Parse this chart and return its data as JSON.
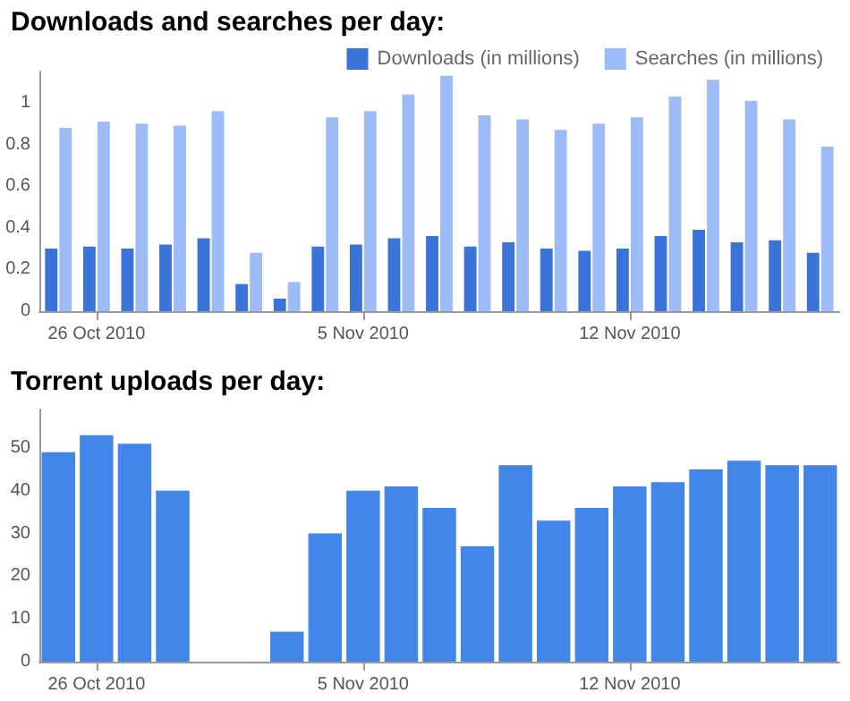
{
  "chart_data": [
    {
      "type": "bar",
      "title": "Downloads and searches per day:",
      "categories": [
        null,
        "26 Oct 2010",
        null,
        null,
        null,
        null,
        null,
        null,
        "5 Nov 2010",
        null,
        null,
        null,
        null,
        null,
        null,
        "12 Nov 2010",
        null,
        null,
        null,
        null,
        null
      ],
      "series": [
        {
          "name": "Downloads (in millions)",
          "color": "#3a74d8",
          "values": [
            0.3,
            0.31,
            0.3,
            0.32,
            0.35,
            0.13,
            0.06,
            0.31,
            0.32,
            0.35,
            0.36,
            0.31,
            0.33,
            0.3,
            0.29,
            0.3,
            0.36,
            0.39,
            0.33,
            0.34,
            0.28
          ]
        },
        {
          "name": "Searches (in millions)",
          "color": "#9dbcf7",
          "values": [
            0.88,
            0.91,
            0.9,
            0.89,
            0.96,
            0.28,
            0.14,
            0.93,
            0.96,
            1.04,
            1.13,
            0.94,
            0.92,
            0.87,
            0.9,
            0.93,
            1.03,
            1.11,
            1.01,
            0.92,
            0.79
          ]
        }
      ],
      "ylim": [
        0,
        1.15
      ],
      "yticks": [
        0,
        0.2,
        0.4,
        0.6,
        0.8,
        1
      ],
      "grid": false,
      "legend": "top right"
    },
    {
      "type": "bar",
      "title": "Torrent uploads per day:",
      "categories": [
        null,
        "26 Oct 2010",
        null,
        null,
        null,
        null,
        null,
        null,
        "5 Nov 2010",
        null,
        null,
        null,
        null,
        null,
        null,
        "12 Nov 2010",
        null,
        null,
        null,
        null,
        null
      ],
      "series": [
        {
          "color": "#4286ea",
          "values": [
            49,
            53,
            51,
            40,
            null,
            null,
            7,
            30,
            40,
            41,
            36,
            27,
            46,
            33,
            36,
            41,
            42,
            45,
            47,
            46,
            46
          ]
        }
      ],
      "ylim": [
        0,
        59
      ],
      "yticks": [
        0,
        10,
        20,
        30,
        40,
        50
      ],
      "grid": false,
      "legend": false
    }
  ]
}
